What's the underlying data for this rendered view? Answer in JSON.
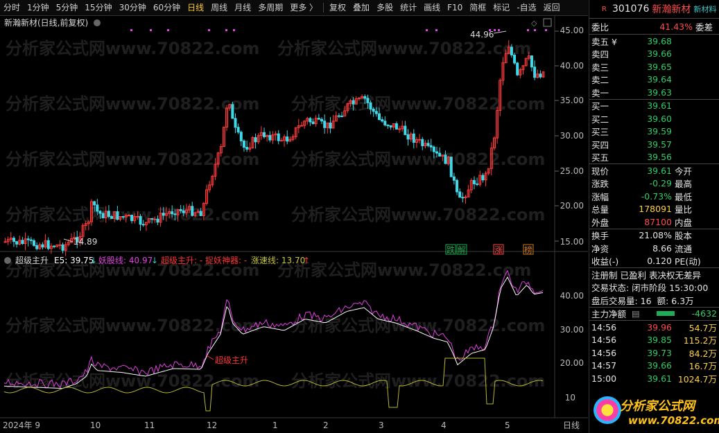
{
  "toolbar": {
    "periods": [
      "分时",
      "1分钟",
      "5分钟",
      "15分钟",
      "30分钟",
      "60分钟",
      "日线",
      "周线",
      "月线",
      "多周期",
      "更多 〉"
    ],
    "active_index": 6,
    "actions": [
      "复权",
      "叠加",
      "多股",
      "统计",
      "画线",
      "F10",
      "简框",
      "标记",
      "-自选",
      "返回"
    ]
  },
  "main_chart": {
    "title": "新瀚新材(日线,前复权)",
    "ytick_labels": [
      "45.00",
      "40.00",
      "35.00",
      "30.00",
      "25.00",
      "20.00",
      "15.00"
    ],
    "high_label": "44.96",
    "low_label": "14.89",
    "event_tags": [
      {
        "text": "跌",
        "color": "#22aa55"
      },
      {
        "text": "解",
        "color": "#22aa55"
      },
      {
        "text": "涨",
        "color": "#ff4444"
      },
      {
        "text": "榜",
        "color": "#cc7722"
      }
    ]
  },
  "indicator": {
    "name": "超级主升",
    "e5_label": "E5: 39.75",
    "yao_label": "妖股线: 40.97",
    "zhusheng_label": "超级主升: -",
    "zhuoyao_label": "捉妖神器: -",
    "zhangsu_label": "涨速线: 13.70",
    "ytick_labels": [
      "40.00",
      "30.00",
      "20.00",
      "10"
    ],
    "signal_text": "超级主升",
    "colors": {
      "e5": "#ffffff",
      "yao": "#e040e0",
      "zhangsu": "#c8c832",
      "signal": "#ff3333"
    }
  },
  "x_axis": {
    "labels": [
      "2024年 9",
      "10",
      "11",
      "12",
      "1",
      "2",
      "3",
      "4",
      "5"
    ],
    "end_label": "日线"
  },
  "watermark": [
    "分析家公式网www.70822.com",
    "分析家公式网www.70822.com",
    "分析家公式网www.70822.com"
  ],
  "stock": {
    "badge": "R",
    "code": "301076",
    "name": "新瀚新材",
    "tag": "新材料"
  },
  "weibi": {
    "label": "委比",
    "value": "41.43%",
    "label2": "委差"
  },
  "asks": [
    {
      "label": "卖五 ¥",
      "price": "39.68"
    },
    {
      "label": "卖四",
      "price": "39.66"
    },
    {
      "label": "卖三",
      "price": "39.65"
    },
    {
      "label": "卖二",
      "price": "39.64"
    },
    {
      "label": "卖一",
      "price": "39.63"
    }
  ],
  "bids": [
    {
      "label": "买一",
      "price": "39.61"
    },
    {
      "label": "买二",
      "price": "39.60"
    },
    {
      "label": "买三",
      "price": "39.59"
    },
    {
      "label": "买四",
      "price": "39.57"
    },
    {
      "label": "买五",
      "price": "39.56"
    }
  ],
  "quote": [
    {
      "label": "现价",
      "value": "39.61",
      "color": "green",
      "label2": "今开"
    },
    {
      "label": "涨跌",
      "value": "-0.29",
      "color": "green",
      "label2": "最高"
    },
    {
      "label": "涨幅",
      "value": "-0.73%",
      "color": "green",
      "label2": "最低"
    },
    {
      "label": "总量",
      "value": "178091",
      "color": "yellow",
      "label2": "量比"
    },
    {
      "label": "外盘",
      "value": "87100",
      "color": "red",
      "label2": "内盘"
    }
  ],
  "stats": [
    {
      "label": "换手",
      "value": "21.08%",
      "label2": "股本"
    },
    {
      "label": "净资",
      "value": "8.66",
      "label2": "流通"
    },
    {
      "label": "收益(-)",
      "value": "0.120",
      "label2": "PE(动)"
    }
  ],
  "info": {
    "line1": "注册制 已盈利 表决权无差异",
    "line2": "交易状态: 闭市阶段 15:30:00",
    "line3_a": "盘后交易量: 16",
    "line3_b": "额: 6.3万"
  },
  "main_flow": {
    "label": "主力净额",
    "value": "-4632"
  },
  "ticks": [
    {
      "time": "14:56",
      "price": "39.96",
      "price_color": "red",
      "amount": "54.7万"
    },
    {
      "time": "14:56",
      "price": "39.85",
      "price_color": "green",
      "amount": "115.2万"
    },
    {
      "time": "14:56",
      "price": "39.73",
      "price_color": "green",
      "amount": "84.2万"
    },
    {
      "time": "14:57",
      "price": "39.66",
      "price_color": "green",
      "amount": "16.7万"
    },
    {
      "time": "15:00",
      "price": "39.61",
      "price_color": "green",
      "amount": "1024.7万"
    }
  ],
  "logo": {
    "text": "分析家公式网",
    "url": "www.70822.com"
  }
}
